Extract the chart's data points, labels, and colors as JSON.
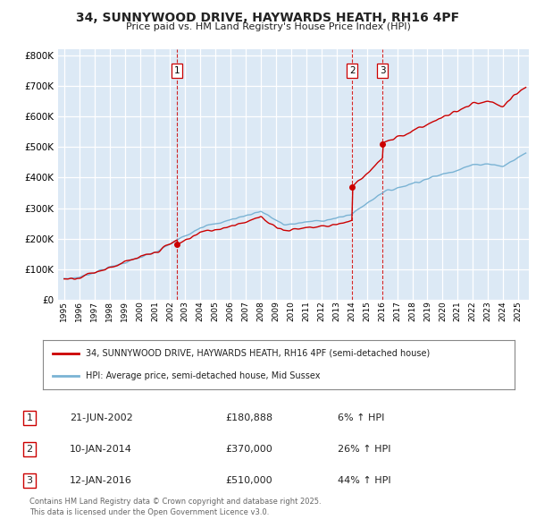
{
  "title": "34, SUNNYWOOD DRIVE, HAYWARDS HEATH, RH16 4PF",
  "subtitle": "Price paid vs. HM Land Registry's House Price Index (HPI)",
  "bg_color": "#dce9f5",
  "legend_label_red": "34, SUNNYWOOD DRIVE, HAYWARDS HEATH, RH16 4PF (semi-detached house)",
  "legend_label_blue": "HPI: Average price, semi-detached house, Mid Sussex",
  "transactions": [
    {
      "label": "1",
      "date_x": 2002.47,
      "price": 180888,
      "date_str": "21-JUN-2002",
      "pct": "6%",
      "dir": "↑"
    },
    {
      "label": "2",
      "date_x": 2014.03,
      "price": 370000,
      "date_str": "10-JAN-2014",
      "pct": "26%",
      "dir": "↑"
    },
    {
      "label": "3",
      "date_x": 2016.03,
      "price": 510000,
      "date_str": "12-JAN-2016",
      "pct": "44%",
      "dir": "↑"
    }
  ],
  "footer_line1": "Contains HM Land Registry data © Crown copyright and database right 2025.",
  "footer_line2": "This data is licensed under the Open Government Licence v3.0.",
  "red_color": "#cc0000",
  "blue_color": "#7ab3d4",
  "vline_color": "#cc0000",
  "ylim_max": 800000,
  "xlim_start": 1994.6,
  "xlim_end": 2025.7,
  "yticks": [
    0,
    100000,
    200000,
    300000,
    400000,
    500000,
    600000,
    700000,
    800000
  ],
  "xticks": [
    1995,
    1996,
    1997,
    1998,
    1999,
    2000,
    2001,
    2002,
    2003,
    2004,
    2005,
    2006,
    2007,
    2008,
    2009,
    2010,
    2011,
    2012,
    2013,
    2014,
    2015,
    2016,
    2017,
    2018,
    2019,
    2020,
    2021,
    2022,
    2023,
    2024,
    2025
  ]
}
